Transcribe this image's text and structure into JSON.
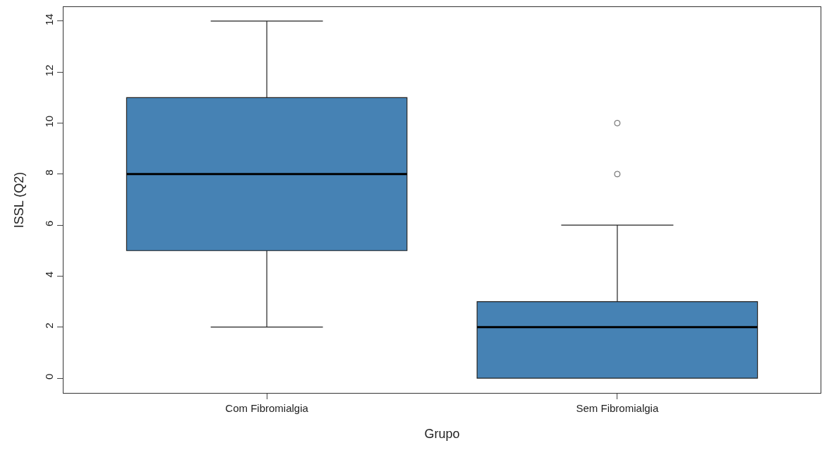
{
  "chart_data": {
    "type": "box",
    "xlabel": "Grupo",
    "ylabel": "ISSL (Q2)",
    "categories": [
      "Com Fibromialgia",
      "Sem Fibromialgia"
    ],
    "boxes": [
      {
        "low": 2,
        "q1": 5,
        "median": 8,
        "q3": 11,
        "high": 14
      },
      {
        "low": 0,
        "q1": 0,
        "median": 2,
        "q3": 3,
        "high": 6,
        "outliers": [
          8,
          10
        ]
      }
    ],
    "color": "#4682b4",
    "ylim": [
      -0.58,
      14.55
    ],
    "yticks": [
      0,
      2,
      4,
      6,
      8,
      10,
      12,
      14
    ]
  }
}
